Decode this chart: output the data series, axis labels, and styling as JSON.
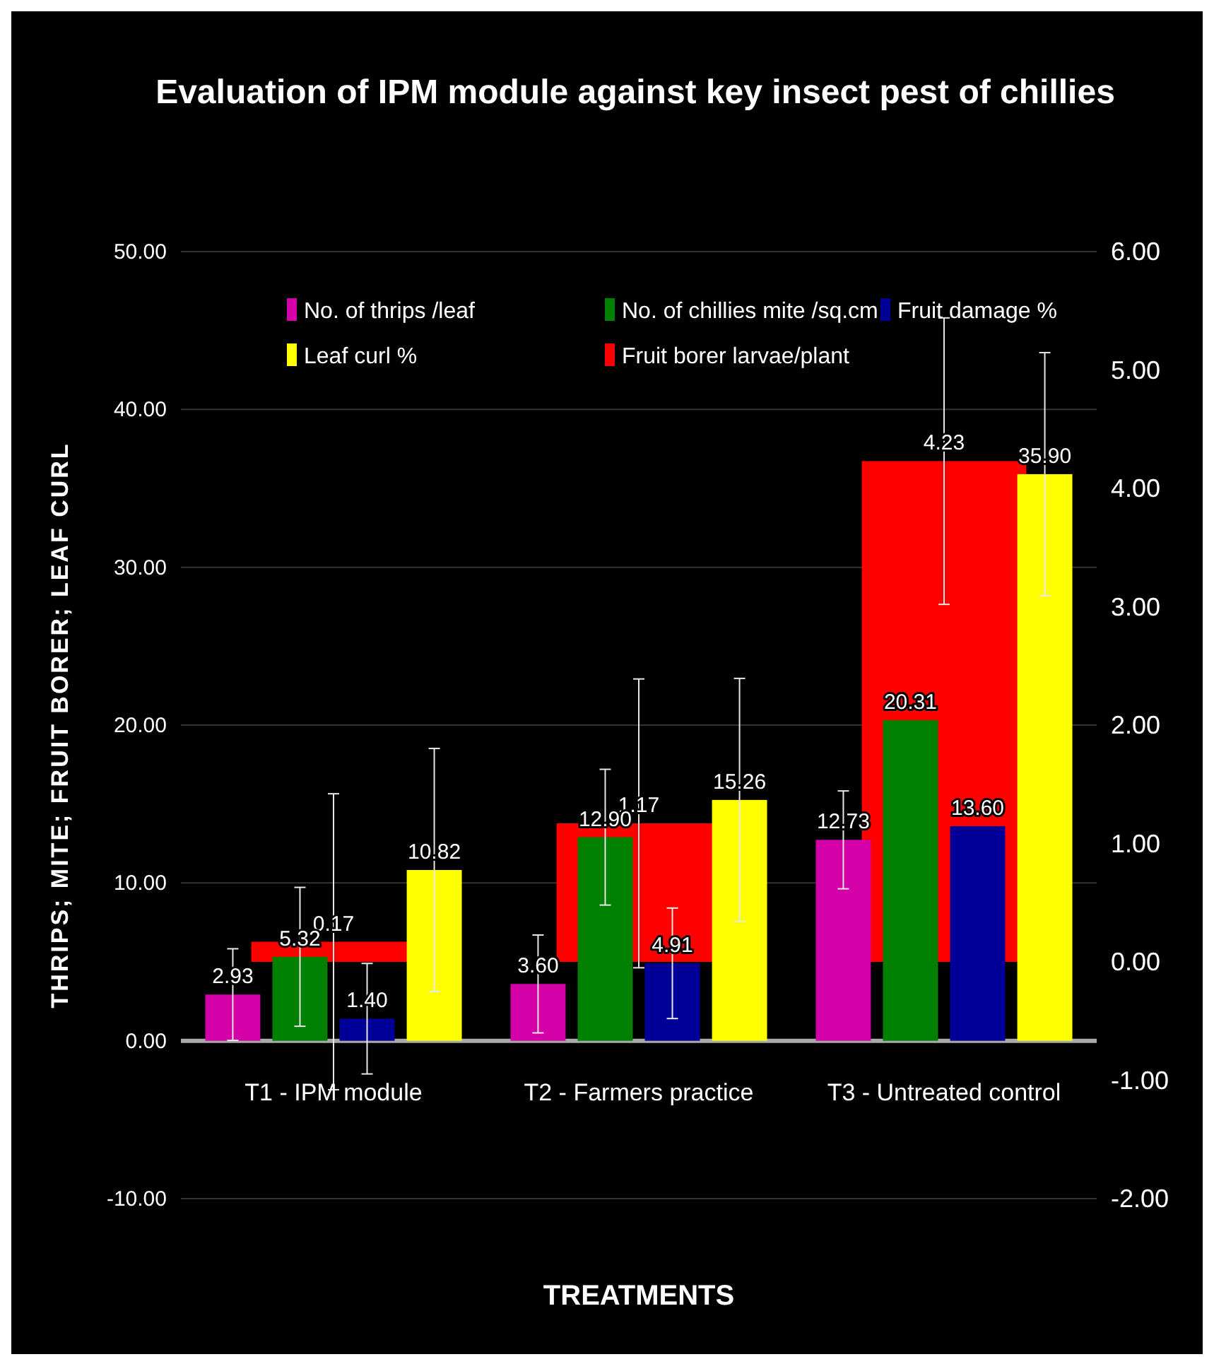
{
  "chart_data": {
    "type": "bar",
    "title": "Evaluation of IPM module against key insect pest of chillies",
    "xlabel": "TREATMENTS",
    "ylabel": "THRIPS; MITE; FRUIT BORER; LEAF CURL",
    "categories": [
      "T1 - IPM module",
      "T2 - Farmers practice",
      "T3 - Untreated control"
    ],
    "series": [
      {
        "name": "No. of thrips /leaf",
        "color": "#d400a8",
        "values": [
          2.93,
          3.6,
          12.73
        ],
        "value_labels": [
          "2.93",
          "3.60",
          "12.73"
        ],
        "errors": [
          2.9,
          3.1,
          3.1
        ]
      },
      {
        "name": "No. of chillies mite /sq.cm",
        "color": "#008000",
        "values": [
          5.32,
          12.9,
          20.31
        ],
        "value_labels": [
          "5.32",
          "12.90",
          "20.31"
        ],
        "errors": [
          4.4,
          4.3,
          null
        ]
      },
      {
        "name": "Fruit damage %",
        "color": "#000099",
        "values": [
          1.4,
          4.91,
          13.6
        ],
        "value_labels": [
          "1.40",
          "4.91",
          "13.60"
        ],
        "errors": [
          3.5,
          3.5,
          null
        ]
      },
      {
        "name": "Leaf curl %",
        "color": "#ffff00",
        "values": [
          10.82,
          15.26,
          35.9
        ],
        "value_labels": [
          "10.82",
          "15.26",
          "35.90"
        ],
        "errors": [
          7.7,
          7.7,
          7.7
        ]
      },
      {
        "name": "Fruit borer larvae/plant",
        "color": "#ff0000",
        "axis": "y2",
        "values": [
          0.17,
          1.17,
          4.23
        ],
        "value_labels": [
          "0.17",
          "1.17",
          "4.23"
        ],
        "errors": [
          1.25,
          1.22,
          1.21
        ]
      }
    ],
    "ylim": [
      -10,
      50
    ],
    "yticks": [
      {
        "value": -10,
        "label": "-10.00"
      },
      {
        "value": 0,
        "label": "0.00"
      },
      {
        "value": 10,
        "label": "10.00"
      },
      {
        "value": 20,
        "label": "20.00"
      },
      {
        "value": 30,
        "label": "30.00"
      },
      {
        "value": 40,
        "label": "40.00"
      },
      {
        "value": 50,
        "label": "50.00"
      }
    ],
    "y2lim": [
      -2,
      6
    ],
    "y2ticks": [
      {
        "value": -2,
        "label": "-2.00"
      },
      {
        "value": -1,
        "label": "-1.00"
      },
      {
        "value": 0,
        "label": "0.00"
      },
      {
        "value": 1,
        "label": "1.00"
      },
      {
        "value": 2,
        "label": "2.00"
      },
      {
        "value": 3,
        "label": "3.00"
      },
      {
        "value": 4,
        "label": "4.00"
      },
      {
        "value": 5,
        "label": "5.00"
      },
      {
        "value": 6,
        "label": "6.00"
      }
    ],
    "grid": "y",
    "legend": "top"
  }
}
